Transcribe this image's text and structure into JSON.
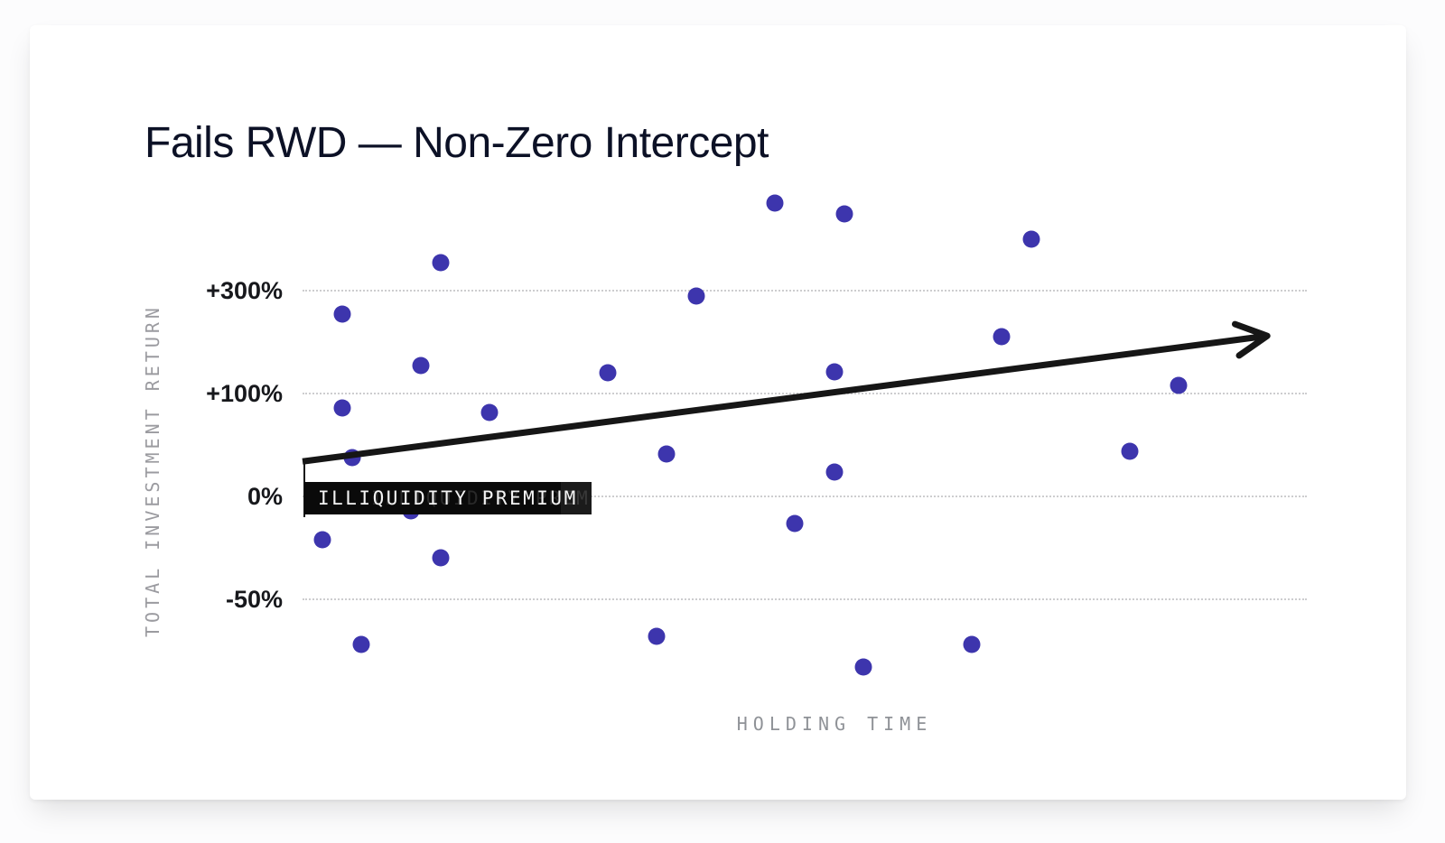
{
  "chart_data": {
    "type": "scatter",
    "title": "Fails RWD — Non-Zero Intercept",
    "xlabel": "HOLDING TIME",
    "ylabel": "TOTAL INVESTMENT RETURN",
    "grid": "horizontal dotted lines at each y tick",
    "legend": "none",
    "x_axis_range": [
      0,
      100
    ],
    "x_axis_ticks": [],
    "y_ticks": [
      {
        "label": "+300%",
        "value": 300
      },
      {
        "label": "+100%",
        "value": 100
      },
      {
        "label": "0%",
        "value": 0
      },
      {
        "label": "-50%",
        "value": -50
      }
    ],
    "y_axis_note": "ticks equally spaced on screen (non-linear value scale), units = total return %",
    "points": [
      {
        "x": 48,
        "y": 470
      },
      {
        "x": 55,
        "y": 450
      },
      {
        "x": 74,
        "y": 400
      },
      {
        "x": 14,
        "y": 355
      },
      {
        "x": 40,
        "y": 290
      },
      {
        "x": 4,
        "y": 255
      },
      {
        "x": 71,
        "y": 210
      },
      {
        "x": 12,
        "y": 155
      },
      {
        "x": 31,
        "y": 140
      },
      {
        "x": 54,
        "y": 142
      },
      {
        "x": 89,
        "y": 115
      },
      {
        "x": 4,
        "y": 86
      },
      {
        "x": 19,
        "y": 82
      },
      {
        "x": 37,
        "y": 41
      },
      {
        "x": 5,
        "y": 38
      },
      {
        "x": 84,
        "y": 44
      },
      {
        "x": 54,
        "y": 24
      },
      {
        "x": 11,
        "y": -7
      },
      {
        "x": 50,
        "y": -13
      },
      {
        "x": 2,
        "y": -21
      },
      {
        "x": 14,
        "y": -30
      },
      {
        "x": 36,
        "y": -68
      },
      {
        "x": 6,
        "y": -72
      },
      {
        "x": 68,
        "y": -72
      },
      {
        "x": 57,
        "y": -83
      }
    ],
    "trend_arrow": {
      "x_start": 0,
      "y_start": 34,
      "x_end": 98,
      "y_end": 212
    },
    "intercept_annotation": {
      "label": "ILLIQUIDITY PREMIUM",
      "at_x": 0,
      "intercept_value": 34
    },
    "colors": {
      "point": "#3d35ad",
      "trend_line": "#161616",
      "annotation_bg": "#0a0a0a",
      "annotation_text": "#f4f4f4",
      "title_text": "#0c1126",
      "axis_title_text": "#9b9ba0",
      "tick_text": "#17181c",
      "grid": "#bdbdbf",
      "card_bg": "#ffffff"
    }
  }
}
